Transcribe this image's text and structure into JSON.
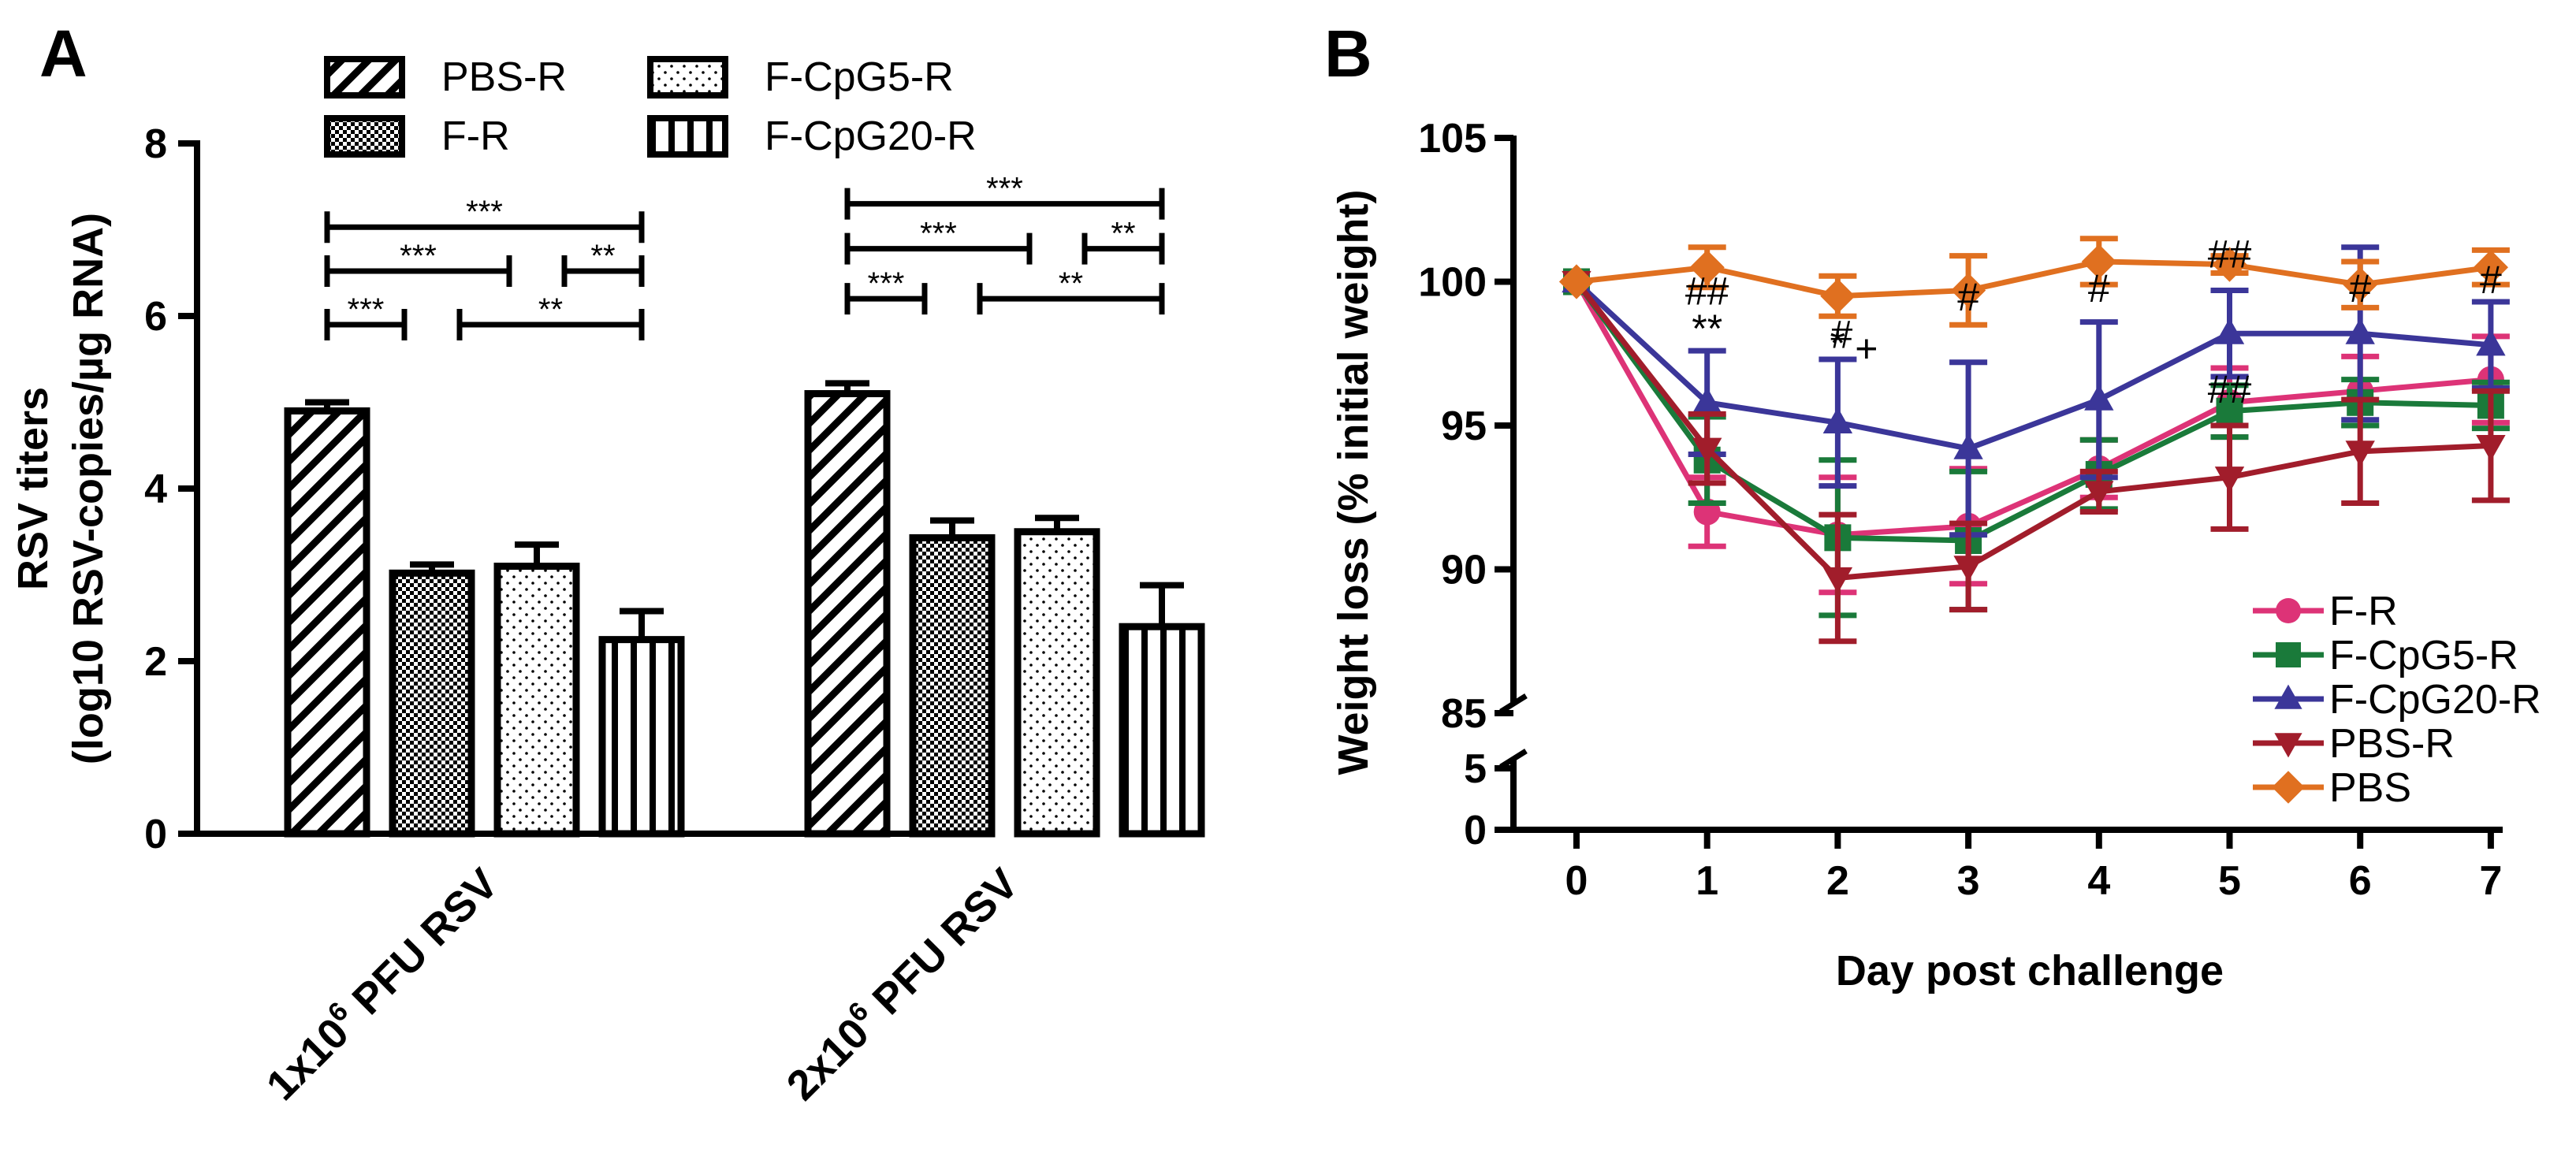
{
  "chart_data": [
    {
      "panel": "A",
      "type": "bar",
      "ylabel_line1": "RSV titers",
      "ylabel_line2": "(log10 RSV-copies/µg RNA)",
      "ylim": [
        0,
        8
      ],
      "yticks": [
        "0",
        "2",
        "4",
        "6",
        "8"
      ],
      "categories": [
        {
          "prefix": "1x10",
          "exp": "6",
          "suffix": " PFU RSV"
        },
        {
          "prefix": "2x10",
          "exp": "6",
          "suffix": " PFU RSV"
        }
      ],
      "series": [
        {
          "name": "PBS-R",
          "pattern": "diag",
          "values": [
            4.9,
            5.1
          ],
          "errors": [
            0.1,
            0.12
          ]
        },
        {
          "name": "F-R",
          "pattern": "checker",
          "values": [
            3.02,
            3.43
          ],
          "errors": [
            0.1,
            0.2
          ]
        },
        {
          "name": "F-CpG5-R",
          "pattern": "dots",
          "values": [
            3.1,
            3.5
          ],
          "errors": [
            0.25,
            0.16
          ]
        },
        {
          "name": "F-CpG20-R",
          "pattern": "vert",
          "values": [
            2.25,
            2.4
          ],
          "errors": [
            0.33,
            0.48
          ]
        }
      ],
      "significance": [
        {
          "group": 0,
          "from": 0,
          "to": 3,
          "level": 7.03,
          "label": "***"
        },
        {
          "group": 0,
          "from": 0,
          "to": 2,
          "level": 6.52,
          "label": "***",
          "stops_before": true
        },
        {
          "group": 0,
          "from": 2,
          "to": 3,
          "level": 6.52,
          "label": "**",
          "starts_after": true
        },
        {
          "group": 0,
          "from": 0,
          "to": 1,
          "level": 5.9,
          "label": "***",
          "stops_before": true
        },
        {
          "group": 0,
          "from": 1,
          "to": 3,
          "level": 5.9,
          "label": "**",
          "starts_after": true
        },
        {
          "group": 1,
          "from": 0,
          "to": 3,
          "level": 7.3,
          "label": "***"
        },
        {
          "group": 1,
          "from": 0,
          "to": 2,
          "level": 6.78,
          "label": "***",
          "stops_before": true
        },
        {
          "group": 1,
          "from": 2,
          "to": 3,
          "level": 6.78,
          "label": "**",
          "starts_after": true
        },
        {
          "group": 1,
          "from": 0,
          "to": 1,
          "level": 6.2,
          "label": "***",
          "stops_before": true
        },
        {
          "group": 1,
          "from": 1,
          "to": 3,
          "level": 6.2,
          "label": "**",
          "starts_after": true
        }
      ]
    },
    {
      "panel": "B",
      "type": "line",
      "xlabel": "Day post challenge",
      "ylabel": "Weight loss (% initial weight)",
      "x": [
        0,
        1,
        2,
        3,
        4,
        5,
        6,
        7
      ],
      "xticks": [
        "0",
        "1",
        "2",
        "3",
        "4",
        "5",
        "6",
        "7"
      ],
      "yticks_upper": [
        "85",
        "90",
        "95",
        "100",
        "105"
      ],
      "yticks_lower": [
        "0",
        "5"
      ],
      "ylim_upper": [
        85,
        105
      ],
      "ylim_lower": [
        0,
        5
      ],
      "series": [
        {
          "name": "F-R",
          "color": "#dd3377",
          "marker": "circle",
          "values": [
            100,
            92.0,
            91.2,
            91.5,
            93.5,
            95.8,
            96.2,
            96.6
          ],
          "errors": [
            0,
            1.2,
            2.0,
            2.0,
            1.0,
            1.2,
            1.2,
            1.5
          ]
        },
        {
          "name": "F-CpG5-R",
          "color": "#1a7a3a",
          "marker": "square",
          "values": [
            100,
            93.8,
            91.1,
            91.0,
            93.3,
            95.5,
            95.8,
            95.7
          ],
          "errors": [
            0,
            1.5,
            2.7,
            2.4,
            1.2,
            0.9,
            0.8,
            0.8
          ]
        },
        {
          "name": "F-CpG20-R",
          "color": "#3b3699",
          "marker": "triangle-up",
          "values": [
            100,
            95.8,
            95.1,
            94.2,
            95.9,
            98.2,
            98.2,
            97.8
          ],
          "errors": [
            0,
            1.8,
            2.2,
            3.0,
            2.7,
            1.5,
            3.0,
            1.5
          ]
        },
        {
          "name": "PBS-R",
          "color": "#a11d2b",
          "marker": "triangle-down",
          "values": [
            100,
            94.2,
            89.7,
            90.1,
            92.7,
            93.2,
            94.1,
            94.3
          ],
          "errors": [
            0,
            1.2,
            2.2,
            1.5,
            0.7,
            1.8,
            1.8,
            1.9
          ]
        },
        {
          "name": "PBS",
          "color": "#e07020",
          "marker": "diamond",
          "values": [
            100,
            100.5,
            99.5,
            99.7,
            100.7,
            100.6,
            99.9,
            100.5
          ],
          "errors": [
            0,
            0.7,
            0.7,
            1.2,
            0.8,
            0.3,
            0.8,
            0.6
          ]
        }
      ],
      "annotations": [
        {
          "x": 1,
          "y": 99.2,
          "text": "##"
        },
        {
          "x": 1,
          "y": 97.9,
          "text": "**"
        },
        {
          "x": 2,
          "y": 97.4,
          "text": "*"
        },
        {
          "x": 2.03,
          "y": 97.7,
          "text": "#"
        },
        {
          "x": 2.22,
          "y": 97.2,
          "text": "+"
        },
        {
          "x": 3,
          "y": 99.0,
          "text": "#"
        },
        {
          "x": 4,
          "y": 99.3,
          "text": "#"
        },
        {
          "x": 5,
          "y": 100.5,
          "text": "##"
        },
        {
          "x": 5,
          "y": 95.8,
          "text": "##"
        },
        {
          "x": 6,
          "y": 99.3,
          "text": "#"
        },
        {
          "x": 7,
          "y": 99.6,
          "text": "#"
        }
      ]
    }
  ]
}
